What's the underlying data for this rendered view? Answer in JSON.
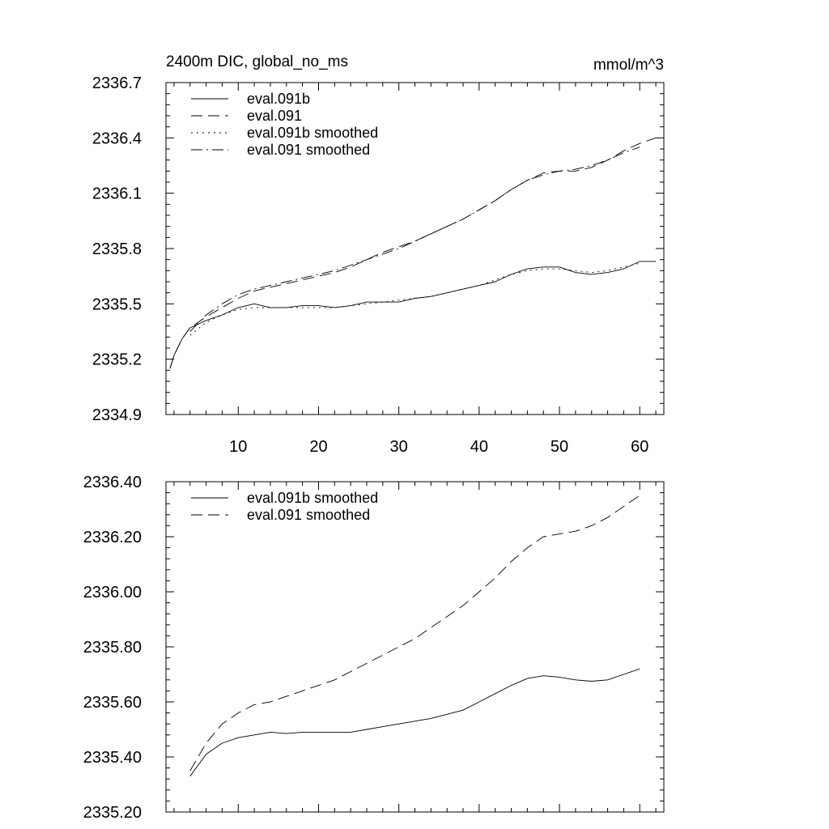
{
  "chart_data": [
    {
      "type": "line",
      "title": "2400m DIC, global_no_ms",
      "units": "mmol/m^3",
      "xlabel": "",
      "ylabel": "",
      "xlim": [
        1,
        63
      ],
      "ylim": [
        2334.9,
        2336.7
      ],
      "xticks": [
        10,
        20,
        30,
        40,
        50,
        60
      ],
      "xtick_labels": [
        "10",
        "20",
        "30",
        "40",
        "50",
        "60"
      ],
      "yticks": [
        2334.9,
        2335.2,
        2335.5,
        2335.8,
        2336.1,
        2336.4,
        2336.7
      ],
      "ytick_labels": [
        "2334.9",
        "2335.2",
        "2335.5",
        "2335.8",
        "2336.1",
        "2336.4",
        "2336.7"
      ],
      "grid": false,
      "legend_position": "top-left",
      "series": [
        {
          "name": "eval.091b",
          "style": "solid",
          "x": [
            1.5,
            2,
            3,
            4,
            6,
            8,
            10,
            12,
            14,
            16,
            18,
            20,
            22,
            24,
            26,
            28,
            30,
            32,
            34,
            36,
            38,
            40,
            42,
            44,
            46,
            48,
            50,
            52,
            54,
            56,
            58,
            60,
            62
          ],
          "y": [
            2335.15,
            2335.22,
            2335.31,
            2335.37,
            2335.41,
            2335.44,
            2335.48,
            2335.5,
            2335.48,
            2335.48,
            2335.49,
            2335.49,
            2335.48,
            2335.49,
            2335.51,
            2335.51,
            2335.51,
            2335.53,
            2335.54,
            2335.56,
            2335.58,
            2335.6,
            2335.62,
            2335.66,
            2335.69,
            2335.7,
            2335.7,
            2335.67,
            2335.66,
            2335.67,
            2335.69,
            2335.73,
            2335.73
          ]
        },
        {
          "name": "eval.091",
          "style": "dash",
          "x": [
            1.5,
            2,
            3,
            4,
            6,
            8,
            10,
            12,
            14,
            16,
            18,
            20,
            22,
            24,
            26,
            28,
            30,
            32,
            34,
            36,
            38,
            40,
            42,
            44,
            46,
            48,
            50,
            52,
            54,
            56,
            58,
            60,
            62
          ],
          "y": [
            2335.15,
            2335.22,
            2335.31,
            2335.37,
            2335.43,
            2335.48,
            2335.53,
            2335.57,
            2335.59,
            2335.61,
            2335.63,
            2335.65,
            2335.67,
            2335.7,
            2335.74,
            2335.78,
            2335.81,
            2335.84,
            2335.88,
            2335.92,
            2335.96,
            2336.01,
            2336.06,
            2336.12,
            2336.17,
            2336.21,
            2336.22,
            2336.22,
            2336.24,
            2336.28,
            2336.33,
            2336.37,
            2336.4
          ]
        },
        {
          "name": "eval.091b smoothed",
          "style": "dot",
          "x": [
            4,
            6,
            8,
            10,
            12,
            14,
            16,
            18,
            20,
            22,
            24,
            26,
            28,
            30,
            32,
            34,
            36,
            38,
            40,
            42,
            44,
            46,
            48,
            50,
            52,
            54,
            56,
            58,
            60
          ],
          "y": [
            2335.33,
            2335.4,
            2335.44,
            2335.47,
            2335.48,
            2335.48,
            2335.48,
            2335.48,
            2335.48,
            2335.48,
            2335.49,
            2335.5,
            2335.51,
            2335.52,
            2335.53,
            2335.54,
            2335.56,
            2335.58,
            2335.6,
            2335.63,
            2335.66,
            2335.68,
            2335.69,
            2335.69,
            2335.68,
            2335.67,
            2335.68,
            2335.7,
            2335.72
          ]
        },
        {
          "name": "eval.091 smoothed",
          "style": "dashdot",
          "x": [
            4,
            6,
            8,
            10,
            12,
            14,
            16,
            18,
            20,
            22,
            24,
            26,
            28,
            30,
            32,
            34,
            36,
            38,
            40,
            42,
            44,
            46,
            48,
            50,
            52,
            54,
            56,
            58,
            60
          ],
          "y": [
            2335.35,
            2335.44,
            2335.5,
            2335.55,
            2335.58,
            2335.6,
            2335.62,
            2335.64,
            2335.66,
            2335.68,
            2335.71,
            2335.74,
            2335.77,
            2335.8,
            2335.84,
            2335.88,
            2335.92,
            2335.96,
            2336.01,
            2336.06,
            2336.12,
            2336.17,
            2336.2,
            2336.22,
            2336.23,
            2336.25,
            2336.28,
            2336.32,
            2336.35
          ]
        }
      ]
    },
    {
      "type": "line",
      "title": "",
      "xlabel": "",
      "ylabel": "",
      "xlim": [
        1,
        63
      ],
      "ylim": [
        2335.2,
        2336.4
      ],
      "xticks": [
        10,
        20,
        30,
        40,
        50,
        60
      ],
      "xtick_labels": [],
      "yticks": [
        2335.2,
        2335.4,
        2335.6,
        2335.8,
        2336.0,
        2336.2,
        2336.4
      ],
      "ytick_labels": [
        "2335.20",
        "2335.40",
        "2335.60",
        "2335.80",
        "2336.00",
        "2336.20",
        "2336.40"
      ],
      "grid": false,
      "legend_position": "top-left",
      "series": [
        {
          "name": "eval.091b smoothed",
          "style": "solid",
          "x": [
            4,
            6,
            8,
            10,
            12,
            14,
            16,
            18,
            20,
            22,
            24,
            26,
            28,
            30,
            32,
            34,
            36,
            38,
            40,
            42,
            44,
            46,
            48,
            50,
            52,
            54,
            56,
            58,
            60
          ],
          "y": [
            2335.33,
            2335.41,
            2335.45,
            2335.47,
            2335.48,
            2335.49,
            2335.485,
            2335.49,
            2335.49,
            2335.49,
            2335.49,
            2335.5,
            2335.51,
            2335.52,
            2335.53,
            2335.54,
            2335.555,
            2335.57,
            2335.6,
            2335.63,
            2335.66,
            2335.685,
            2335.695,
            2335.69,
            2335.68,
            2335.675,
            2335.68,
            2335.7,
            2335.72
          ]
        },
        {
          "name": "eval.091 smoothed",
          "style": "dash",
          "x": [
            4,
            6,
            8,
            10,
            12,
            14,
            16,
            18,
            20,
            22,
            24,
            26,
            28,
            30,
            32,
            34,
            36,
            38,
            40,
            42,
            44,
            46,
            48,
            50,
            52,
            54,
            56,
            58,
            60
          ],
          "y": [
            2335.35,
            2335.45,
            2335.52,
            2335.56,
            2335.59,
            2335.6,
            2335.62,
            2335.64,
            2335.66,
            2335.68,
            2335.71,
            2335.74,
            2335.77,
            2335.8,
            2335.83,
            2335.87,
            2335.91,
            2335.95,
            2336.0,
            2336.05,
            2336.11,
            2336.16,
            2336.2,
            2336.21,
            2336.22,
            2336.24,
            2336.27,
            2336.31,
            2336.35
          ]
        }
      ]
    }
  ]
}
